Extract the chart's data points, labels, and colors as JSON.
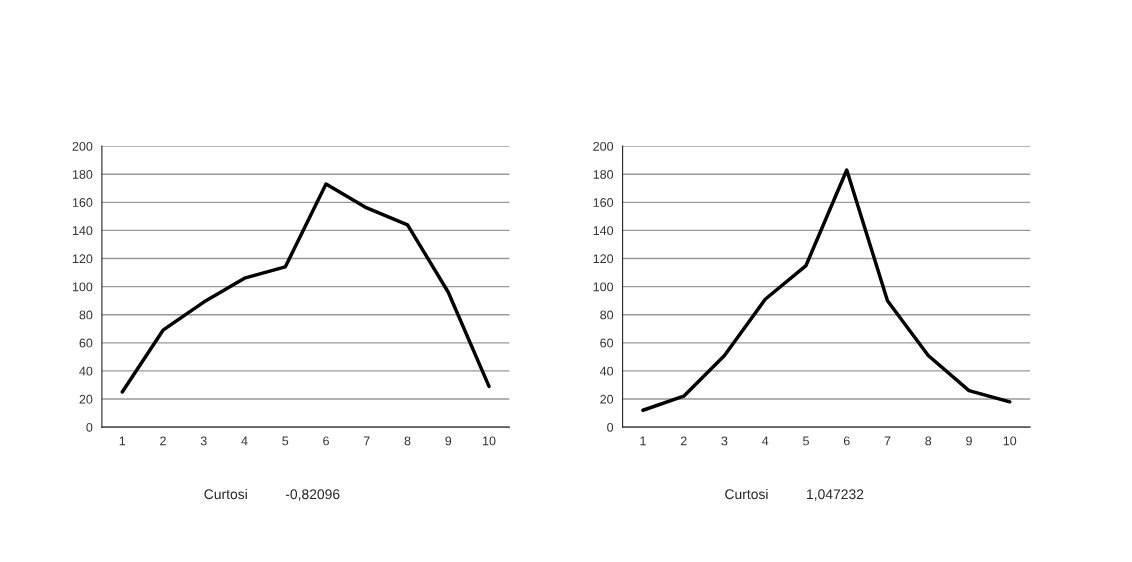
{
  "chart_data": [
    {
      "type": "line",
      "categories": [
        "1",
        "2",
        "3",
        "4",
        "5",
        "6",
        "7",
        "8",
        "9",
        "10"
      ],
      "series": [
        {
          "color": "#000000",
          "values": [
            25,
            69,
            89,
            106,
            114,
            173,
            156,
            144,
            96,
            29
          ]
        }
      ],
      "ylim": [
        0,
        200
      ],
      "yticks": [
        0,
        20,
        40,
        60,
        80,
        100,
        120,
        140,
        160,
        180,
        200
      ],
      "grid": "y",
      "marker": "none",
      "line_style": "solid",
      "annotations": [
        "Curtosi",
        "-0,82096"
      ]
    },
    {
      "type": "line",
      "categories": [
        "1",
        "2",
        "3",
        "4",
        "5",
        "6",
        "7",
        "8",
        "9",
        "10"
      ],
      "series": [
        {
          "color": "#000000",
          "values": [
            12,
            22,
            51,
            91,
            115,
            183,
            90,
            51,
            26,
            18
          ]
        }
      ],
      "ylim": [
        0,
        200
      ],
      "yticks": [
        0,
        20,
        40,
        60,
        80,
        100,
        120,
        140,
        160,
        180,
        200
      ],
      "grid": "y",
      "marker": "none",
      "line_style": "solid",
      "annotations": [
        "Curtosi",
        "1,047232"
      ]
    }
  ]
}
